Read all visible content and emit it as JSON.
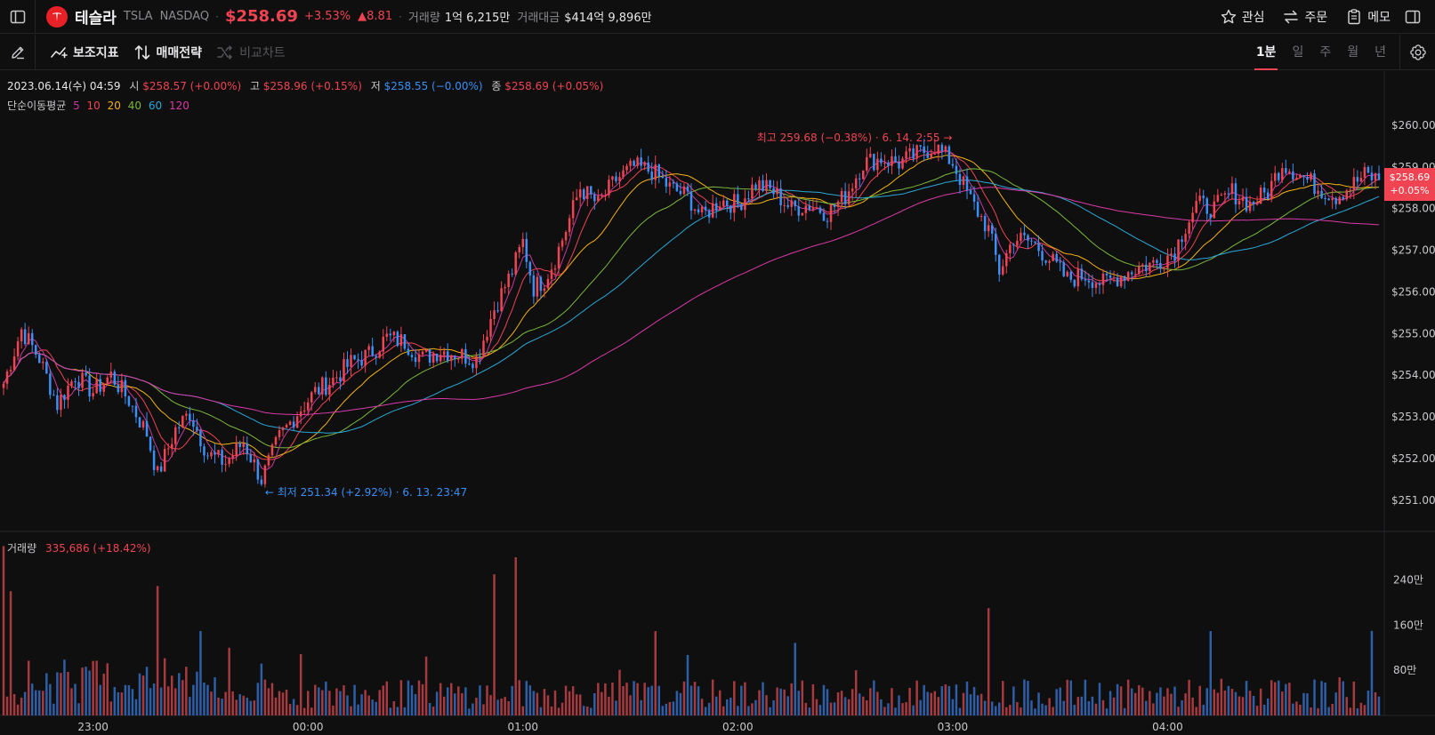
{
  "header": {
    "stock_name": "테슬라",
    "ticker": "TSLA",
    "exchange": "NASDAQ",
    "price": "$258.69",
    "change_pct": "+3.53%",
    "change_abs": "▲8.81",
    "volume_label": "거래량",
    "volume_value": "1억 6,215만",
    "amount_label": "거래대금",
    "amount_value": "$414억 9,896만",
    "actions": {
      "watch": "관심",
      "order": "주문",
      "memo": "메모"
    }
  },
  "toolbar": {
    "indicators": "보조지표",
    "strategy": "매매전략",
    "compare": "비교차트",
    "intervals": [
      "1분",
      "일",
      "주",
      "월",
      "년"
    ],
    "active_interval": "1분"
  },
  "ohlc": {
    "date": "2023.06.14(수) 04:59",
    "open_label": "시",
    "open": "$258.57 (+0.00%)",
    "high_label": "고",
    "high": "$258.96 (+0.15%)",
    "low_label": "저",
    "low": "$258.55 (−0.00%)",
    "close_label": "종",
    "close": "$258.69 (+0.05%)"
  },
  "ma_legend": {
    "label": "단순이동평균",
    "periods": [
      {
        "p": "5",
        "color": "#c7399f"
      },
      {
        "p": "10",
        "color": "#f04452"
      },
      {
        "p": "20",
        "color": "#f2b20f"
      },
      {
        "p": "40",
        "color": "#7bb83a"
      },
      {
        "p": "60",
        "color": "#2aa9d6"
      },
      {
        "p": "120",
        "color": "#d93aa5"
      }
    ]
  },
  "volume_legend": {
    "label": "거래량",
    "value": "335,686 (+18.42%)"
  },
  "price_tag": {
    "price": "$258.69",
    "pct": "+0.05%"
  },
  "extremes": {
    "high": "최고 259.68 (−0.38%) · 6. 14. 2:55 →",
    "low": "← 최저 251.34 (+2.92%) · 6. 13. 23:47"
  },
  "colors": {
    "up": "#f04452",
    "down": "#3b8ff5",
    "bg": "#0f0f10"
  },
  "chart_data": {
    "type": "candlestick",
    "price_axis": [
      "$260.00",
      "$259.00",
      "$258.00",
      "$257.00",
      "$256.00",
      "$255.00",
      "$254.00",
      "$253.00",
      "$252.00",
      "$251.00"
    ],
    "volume_axis": [
      "240만",
      "160만",
      "80만"
    ],
    "time_axis": [
      "23:00",
      "00:00",
      "01:00",
      "02:00",
      "03:00",
      "04:00"
    ],
    "price_ylim": [
      250.25,
      261.3
    ],
    "volume_ylim": [
      0,
      3100000
    ],
    "time_range": [
      "22:35",
      "04:59"
    ],
    "price_keypoints": [
      [
        "22:35",
        253.8
      ],
      [
        "22:40",
        255.1
      ],
      [
        "22:45",
        254.4
      ],
      [
        "22:50",
        253.3
      ],
      [
        "22:55",
        254.0
      ],
      [
        "23:00",
        253.6
      ],
      [
        "23:05",
        254.0
      ],
      [
        "23:10",
        253.4
      ],
      [
        "23:15",
        252.6
      ],
      [
        "23:18",
        251.6
      ],
      [
        "23:23",
        252.7
      ],
      [
        "23:27",
        253.1
      ],
      [
        "23:32",
        252.1
      ],
      [
        "23:37",
        251.9
      ],
      [
        "23:42",
        252.4
      ],
      [
        "23:47",
        251.5
      ],
      [
        "23:52",
        252.5
      ],
      [
        "23:57",
        253.1
      ],
      [
        "00:02",
        253.6
      ],
      [
        "00:07",
        253.9
      ],
      [
        "00:12",
        254.3
      ],
      [
        "00:17",
        254.5
      ],
      [
        "00:22",
        254.9
      ],
      [
        "00:27",
        254.8
      ],
      [
        "00:32",
        254.4
      ],
      [
        "00:37",
        254.6
      ],
      [
        "00:42",
        254.5
      ],
      [
        "00:47",
        254.4
      ],
      [
        "00:52",
        255.6
      ],
      [
        "00:57",
        256.5
      ],
      [
        "01:00",
        257.2
      ],
      [
        "01:03",
        256.1
      ],
      [
        "01:06",
        256.3
      ],
      [
        "01:09",
        256.8
      ],
      [
        "01:12",
        257.5
      ],
      [
        "01:16",
        258.5
      ],
      [
        "01:21",
        258.1
      ],
      [
        "01:26",
        258.7
      ],
      [
        "01:31",
        259.0
      ],
      [
        "01:36",
        258.9
      ],
      [
        "01:41",
        258.5
      ],
      [
        "01:46",
        258.3
      ],
      [
        "01:50",
        257.8
      ],
      [
        "01:55",
        258.2
      ],
      [
        "02:00",
        258.1
      ],
      [
        "02:05",
        258.6
      ],
      [
        "02:10",
        258.4
      ],
      [
        "02:15",
        258.0
      ],
      [
        "02:20",
        258.1
      ],
      [
        "02:25",
        257.9
      ],
      [
        "02:30",
        258.3
      ],
      [
        "02:35",
        259.1
      ],
      [
        "02:40",
        259.2
      ],
      [
        "02:45",
        259.1
      ],
      [
        "02:50",
        259.3
      ],
      [
        "02:55",
        259.5
      ],
      [
        "03:00",
        259.1
      ],
      [
        "03:05",
        258.2
      ],
      [
        "03:10",
        257.5
      ],
      [
        "03:13",
        256.5
      ],
      [
        "03:17",
        257.3
      ],
      [
        "03:22",
        257.2
      ],
      [
        "03:27",
        256.8
      ],
      [
        "03:32",
        256.3
      ],
      [
        "03:37",
        256.4
      ],
      [
        "03:42",
        256.2
      ],
      [
        "03:47",
        256.4
      ],
      [
        "03:52",
        256.6
      ],
      [
        "03:57",
        256.7
      ],
      [
        "04:02",
        257.0
      ],
      [
        "04:05",
        257.6
      ],
      [
        "04:08",
        258.1
      ],
      [
        "04:13",
        258.0
      ],
      [
        "04:18",
        258.4
      ],
      [
        "04:23",
        258.1
      ],
      [
        "04:28",
        258.4
      ],
      [
        "04:32",
        259.1
      ],
      [
        "04:37",
        258.8
      ],
      [
        "04:42",
        258.5
      ],
      [
        "04:47",
        258.3
      ],
      [
        "04:52",
        258.6
      ],
      [
        "04:55",
        258.8
      ],
      [
        "04:59",
        258.7
      ]
    ],
    "extremes": {
      "high": {
        "time": "02:55",
        "price": 259.68
      },
      "low": {
        "time": "23:47",
        "price": 251.34
      }
    },
    "last_volume": 335686
  }
}
